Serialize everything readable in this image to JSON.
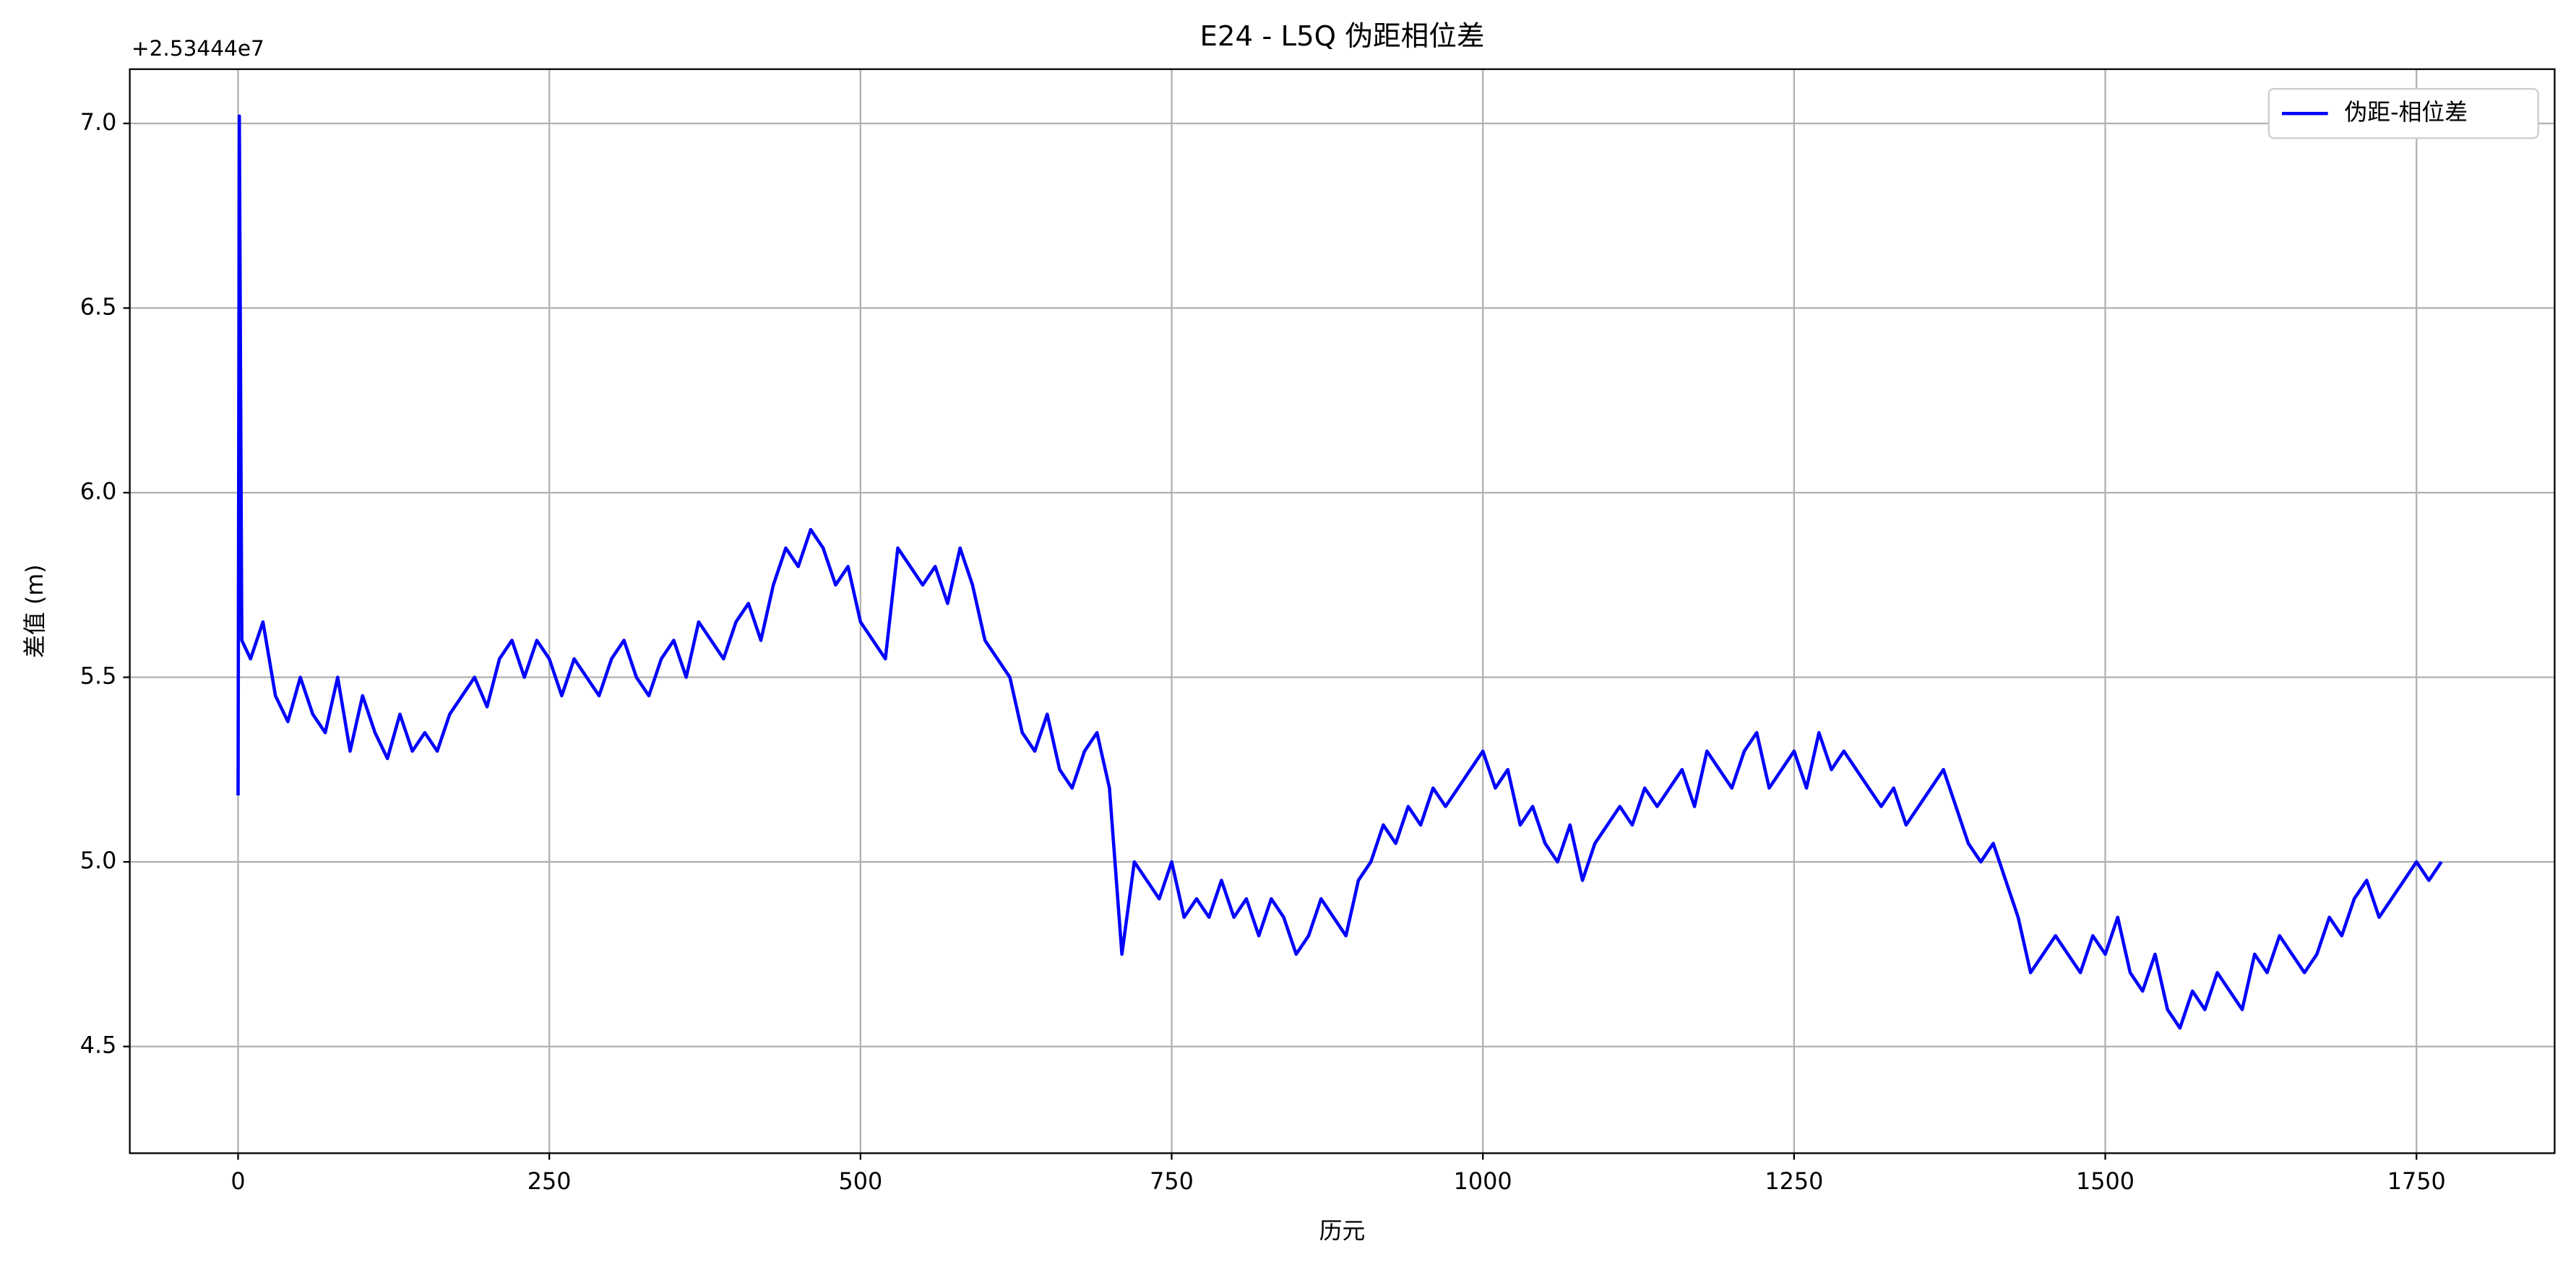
{
  "chart_data": {
    "type": "line",
    "title": "E24 - L5Q 伪距相位差",
    "xlabel": "历元",
    "ylabel": "差值 (m)",
    "y_offset_label": "+2.53444e7",
    "legend": "upper right",
    "grid": true,
    "xlim": [
      -87,
      1861
    ],
    "ylim": [
      4.211,
      7.147
    ],
    "xticks": [
      0,
      250,
      500,
      750,
      1000,
      1250,
      1500,
      1750
    ],
    "yticks": [
      {
        "value": 4.5,
        "label": "4.5"
      },
      {
        "value": 5,
        "label": "5.0"
      },
      {
        "value": 5.5,
        "label": "5.5"
      },
      {
        "value": 6,
        "label": "6.0"
      },
      {
        "value": 6.5,
        "label": "6.5"
      },
      {
        "value": 7,
        "label": "7.0"
      }
    ],
    "x": [
      0,
      1,
      3,
      10,
      20,
      30,
      40,
      50,
      60,
      70,
      80,
      90,
      100,
      110,
      120,
      130,
      140,
      150,
      160,
      170,
      180,
      190,
      200,
      210,
      220,
      230,
      240,
      250,
      260,
      270,
      280,
      290,
      300,
      310,
      320,
      330,
      340,
      350,
      360,
      370,
      380,
      390,
      400,
      410,
      420,
      430,
      440,
      450,
      460,
      470,
      480,
      490,
      500,
      510,
      520,
      530,
      540,
      550,
      560,
      570,
      580,
      590,
      600,
      610,
      620,
      630,
      640,
      650,
      660,
      670,
      680,
      690,
      700,
      710,
      720,
      730,
      740,
      750,
      760,
      770,
      780,
      790,
      800,
      810,
      820,
      830,
      840,
      850,
      860,
      870,
      880,
      890,
      900,
      910,
      920,
      930,
      940,
      950,
      960,
      970,
      980,
      990,
      1000,
      1010,
      1020,
      1030,
      1040,
      1050,
      1060,
      1070,
      1080,
      1090,
      1100,
      1110,
      1120,
      1130,
      1140,
      1150,
      1160,
      1170,
      1180,
      1190,
      1200,
      1210,
      1220,
      1230,
      1240,
      1250,
      1260,
      1270,
      1280,
      1290,
      1300,
      1310,
      1320,
      1330,
      1340,
      1350,
      1360,
      1370,
      1380,
      1390,
      1400,
      1410,
      1420,
      1430,
      1440,
      1450,
      1460,
      1470,
      1480,
      1490,
      1500,
      1510,
      1520,
      1530,
      1540,
      1550,
      1560,
      1570,
      1580,
      1590,
      1600,
      1610,
      1620,
      1630,
      1640,
      1650,
      1660,
      1670,
      1680,
      1690,
      1700,
      1710,
      1720,
      1730,
      1740,
      1750,
      1760,
      1770
    ],
    "series": [
      {
        "name": "伪距-相位差",
        "color": "#0000ff",
        "values": [
          5.18,
          7.02,
          5.6,
          5.55,
          5.65,
          5.45,
          5.38,
          5.5,
          5.4,
          5.35,
          5.5,
          5.3,
          5.45,
          5.35,
          5.28,
          5.4,
          5.3,
          5.35,
          5.3,
          5.4,
          5.45,
          5.5,
          5.42,
          5.55,
          5.6,
          5.5,
          5.6,
          5.55,
          5.45,
          5.55,
          5.5,
          5.45,
          5.55,
          5.6,
          5.5,
          5.45,
          5.55,
          5.6,
          5.5,
          5.65,
          5.6,
          5.55,
          5.65,
          5.7,
          5.6,
          5.75,
          5.85,
          5.8,
          5.9,
          5.85,
          5.75,
          5.8,
          5.65,
          5.6,
          5.55,
          5.85,
          5.8,
          5.75,
          5.8,
          5.7,
          5.85,
          5.75,
          5.6,
          5.55,
          5.5,
          5.35,
          5.3,
          5.4,
          5.25,
          5.2,
          5.3,
          5.35,
          5.2,
          4.75,
          5.0,
          4.95,
          4.9,
          5.0,
          4.85,
          4.9,
          4.85,
          4.95,
          4.85,
          4.9,
          4.8,
          4.9,
          4.85,
          4.75,
          4.8,
          4.9,
          4.85,
          4.8,
          4.95,
          5.0,
          5.1,
          5.05,
          5.15,
          5.1,
          5.2,
          5.15,
          5.2,
          5.25,
          5.3,
          5.2,
          5.25,
          5.1,
          5.15,
          5.05,
          5.0,
          5.1,
          4.95,
          5.05,
          5.1,
          5.15,
          5.1,
          5.2,
          5.15,
          5.2,
          5.25,
          5.15,
          5.3,
          5.25,
          5.2,
          5.3,
          5.35,
          5.2,
          5.25,
          5.3,
          5.2,
          5.35,
          5.25,
          5.3,
          5.25,
          5.2,
          5.15,
          5.2,
          5.1,
          5.15,
          5.2,
          5.25,
          5.15,
          5.05,
          5.0,
          5.05,
          4.95,
          4.85,
          4.7,
          4.75,
          4.8,
          4.75,
          4.7,
          4.8,
          4.75,
          4.85,
          4.7,
          4.65,
          4.75,
          4.6,
          4.55,
          4.65,
          4.6,
          4.7,
          4.65,
          4.6,
          4.75,
          4.7,
          4.8,
          4.75,
          4.7,
          4.75,
          4.85,
          4.8,
          4.9,
          4.95,
          4.85,
          4.9,
          4.95,
          5.0,
          4.95,
          5.0
        ]
      }
    ]
  }
}
